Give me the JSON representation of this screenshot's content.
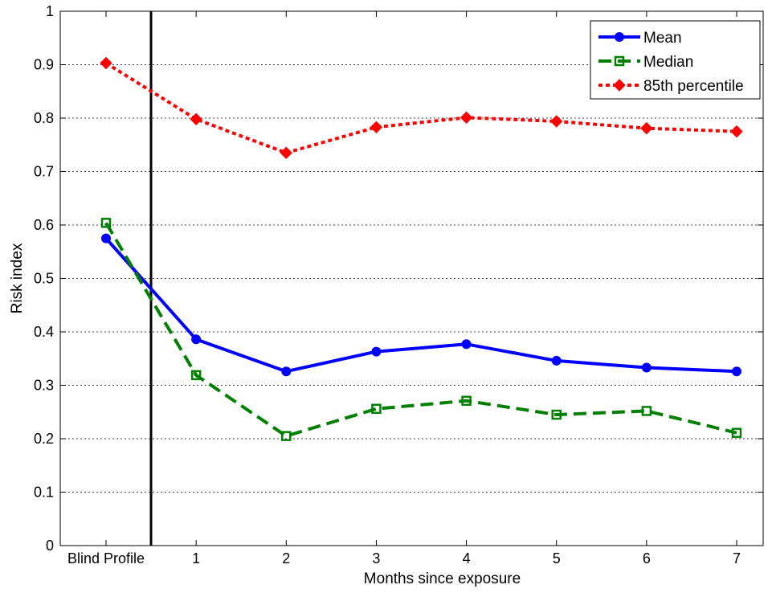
{
  "chart_data": {
    "type": "line",
    "x_categories": [
      "Blind Profile",
      "1",
      "2",
      "3",
      "4",
      "5",
      "6",
      "7"
    ],
    "xlabel": "Months since exposure",
    "ylabel": "Risk index",
    "ylim": [
      0,
      1
    ],
    "y_ticks": [
      0,
      0.1,
      0.2,
      0.3,
      0.4,
      0.5,
      0.6,
      0.7,
      0.8,
      0.9,
      1
    ],
    "y_tick_labels": [
      "0",
      "0.1",
      "0.2",
      "0.3",
      "0.4",
      "0.5",
      "0.6",
      "0.7",
      "0.8",
      "0.9",
      "1"
    ],
    "grid": "horizontal dotted",
    "legend_position": "top-right",
    "divider_after_category": "Blind Profile",
    "series": [
      {
        "name": "Mean",
        "color": "#0000ff",
        "line_style": "solid",
        "marker": "circle",
        "values": [
          0.575,
          0.386,
          0.326,
          0.363,
          0.377,
          0.346,
          0.333,
          0.326
        ]
      },
      {
        "name": "Median",
        "color": "#008000",
        "line_style": "dashed",
        "marker": "square",
        "values": [
          0.604,
          0.319,
          0.205,
          0.256,
          0.271,
          0.245,
          0.252,
          0.211
        ]
      },
      {
        "name": "85th percentile",
        "color": "#ff0000",
        "line_style": "dotted",
        "marker": "diamond",
        "values": [
          0.903,
          0.798,
          0.735,
          0.783,
          0.801,
          0.794,
          0.781,
          0.775
        ]
      }
    ]
  }
}
